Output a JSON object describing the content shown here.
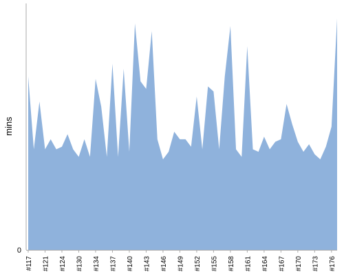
{
  "chart_data": {
    "type": "area",
    "title": "",
    "xlabel": "",
    "ylabel": "mins",
    "grid": false,
    "legend": "none",
    "colors": {
      "area": "#8fb2dc",
      "axis": "#aaaaaa",
      "text": "#000000"
    },
    "ylim": [
      0,
      98
    ],
    "y_ticks": [
      {
        "value": 0,
        "label": "0"
      }
    ],
    "x_tick_labels": [
      "#117",
      "#121",
      "#124",
      "#130",
      "#134",
      "#137",
      "#140",
      "#143",
      "#146",
      "#149",
      "#152",
      "#155",
      "#158",
      "#161",
      "#164",
      "#167",
      "#170",
      "#173",
      "#176"
    ],
    "x_tick_indices": [
      0,
      3,
      6,
      9,
      12,
      15,
      18,
      21,
      24,
      27,
      30,
      33,
      36,
      39,
      42,
      45,
      48,
      51,
      54
    ],
    "series": [
      {
        "values": [
          69,
          40,
          59,
          40,
          44,
          40,
          41,
          46,
          40,
          37,
          44,
          37,
          68,
          57,
          37,
          74,
          37,
          72,
          39,
          90,
          67,
          64,
          87,
          44,
          36,
          39,
          47,
          44,
          44,
          41,
          61,
          40,
          65,
          63,
          40,
          69,
          89,
          40,
          37,
          81,
          40,
          39,
          45,
          40,
          43,
          44,
          58,
          50,
          43,
          39,
          42,
          38,
          36,
          41,
          49,
          92
        ]
      }
    ]
  }
}
